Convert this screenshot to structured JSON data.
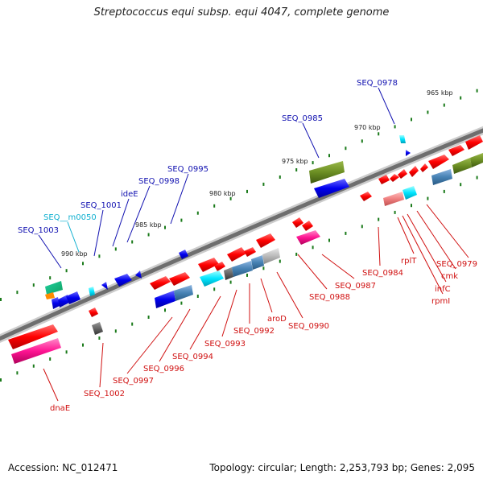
{
  "title": "Streptococcus equi subsp. equi 4047, complete genome",
  "accession": "Accession: NC_012471",
  "summary": "Topology: circular; Length: 2,253,793 bp; Genes: 2,095",
  "kbp_labels": [
    "990 kbp",
    "985 kbp",
    "980 kbp",
    "975 kbp",
    "970 kbp",
    "965 kbp"
  ],
  "upper_gene_labels": [
    {
      "text": "SEQ_1003",
      "color": "#1010b0"
    },
    {
      "text": "SEQ__m0050",
      "color": "#10b0d0"
    },
    {
      "text": "SEQ_1001",
      "color": "#1010b0"
    },
    {
      "text": "ideE",
      "color": "#1010b0"
    },
    {
      "text": "SEQ_0998",
      "color": "#1010b0"
    },
    {
      "text": "SEQ_0995",
      "color": "#1010b0"
    },
    {
      "text": "SEQ_0985",
      "color": "#1010b0"
    },
    {
      "text": "SEQ_0978",
      "color": "#1010b0"
    }
  ],
  "lower_gene_labels": [
    {
      "text": "dnaE"
    },
    {
      "text": "SEQ_1002"
    },
    {
      "text": "SEQ_0997"
    },
    {
      "text": "SEQ_0996"
    },
    {
      "text": "SEQ_0994"
    },
    {
      "text": "SEQ_0993"
    },
    {
      "text": "SEQ_0992"
    },
    {
      "text": "aroD"
    },
    {
      "text": "SEQ_0990"
    },
    {
      "text": "SEQ_0988"
    },
    {
      "text": "SEQ_0987"
    },
    {
      "text": "SEQ_0984"
    },
    {
      "text": "rplT"
    },
    {
      "text": "infC"
    },
    {
      "text": "rpmI"
    },
    {
      "text": "cmk"
    },
    {
      "text": "SEQ_0979"
    }
  ],
  "colors": {
    "lower_label": "#d01010",
    "backbone": "#777777",
    "tick": "#1a7a1a"
  }
}
